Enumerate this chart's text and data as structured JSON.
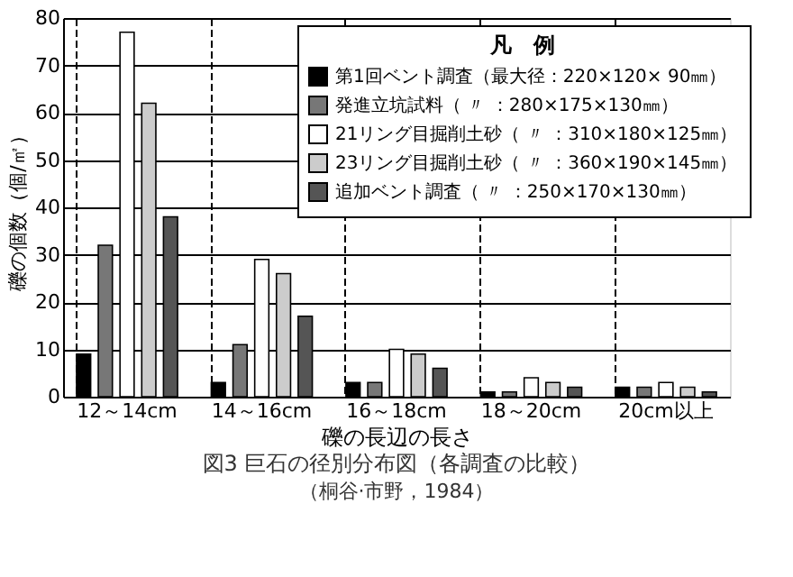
{
  "chart_data": {
    "type": "bar",
    "title": "図3 巨石の径別分布図（各調査の比較）",
    "subtitle": "（桐谷·市野，1984）",
    "xlabel": "礫の長辺の長さ",
    "ylabel": "礫の個数（個/㎡）",
    "legend_title": "凡　例",
    "categories": [
      "12～14cm",
      "14～16cm",
      "16～18cm",
      "18～20cm",
      "20cm以上"
    ],
    "series": [
      {
        "name": "第1回ベント調査（最大径：220×120× 90㎜）",
        "color": "#000000",
        "values": [
          9,
          3,
          3,
          1,
          2
        ]
      },
      {
        "name": "発進立坑試料（ 〃 ：280×175×130㎜）",
        "color": "#777777",
        "values": [
          32,
          11,
          3,
          1,
          2
        ]
      },
      {
        "name": "21リング目掘削土砂（ 〃 ：310×180×125㎜）",
        "color": "#ffffff",
        "values": [
          77,
          29,
          10,
          4,
          3
        ]
      },
      {
        "name": "23リング目掘削土砂（ 〃 ：360×190×145㎜）",
        "color": "#cccccc",
        "values": [
          62,
          26,
          9,
          3,
          2
        ]
      },
      {
        "name": "追加ベント調査（ 〃 ：250×170×130㎜）",
        "color": "#555555",
        "values": [
          38,
          17,
          6,
          2,
          1
        ]
      }
    ],
    "ylim": [
      0,
      80
    ],
    "yticks": [
      0,
      10,
      20,
      30,
      40,
      50,
      60,
      70,
      80
    ],
    "grid": true,
    "legend": "top right"
  }
}
